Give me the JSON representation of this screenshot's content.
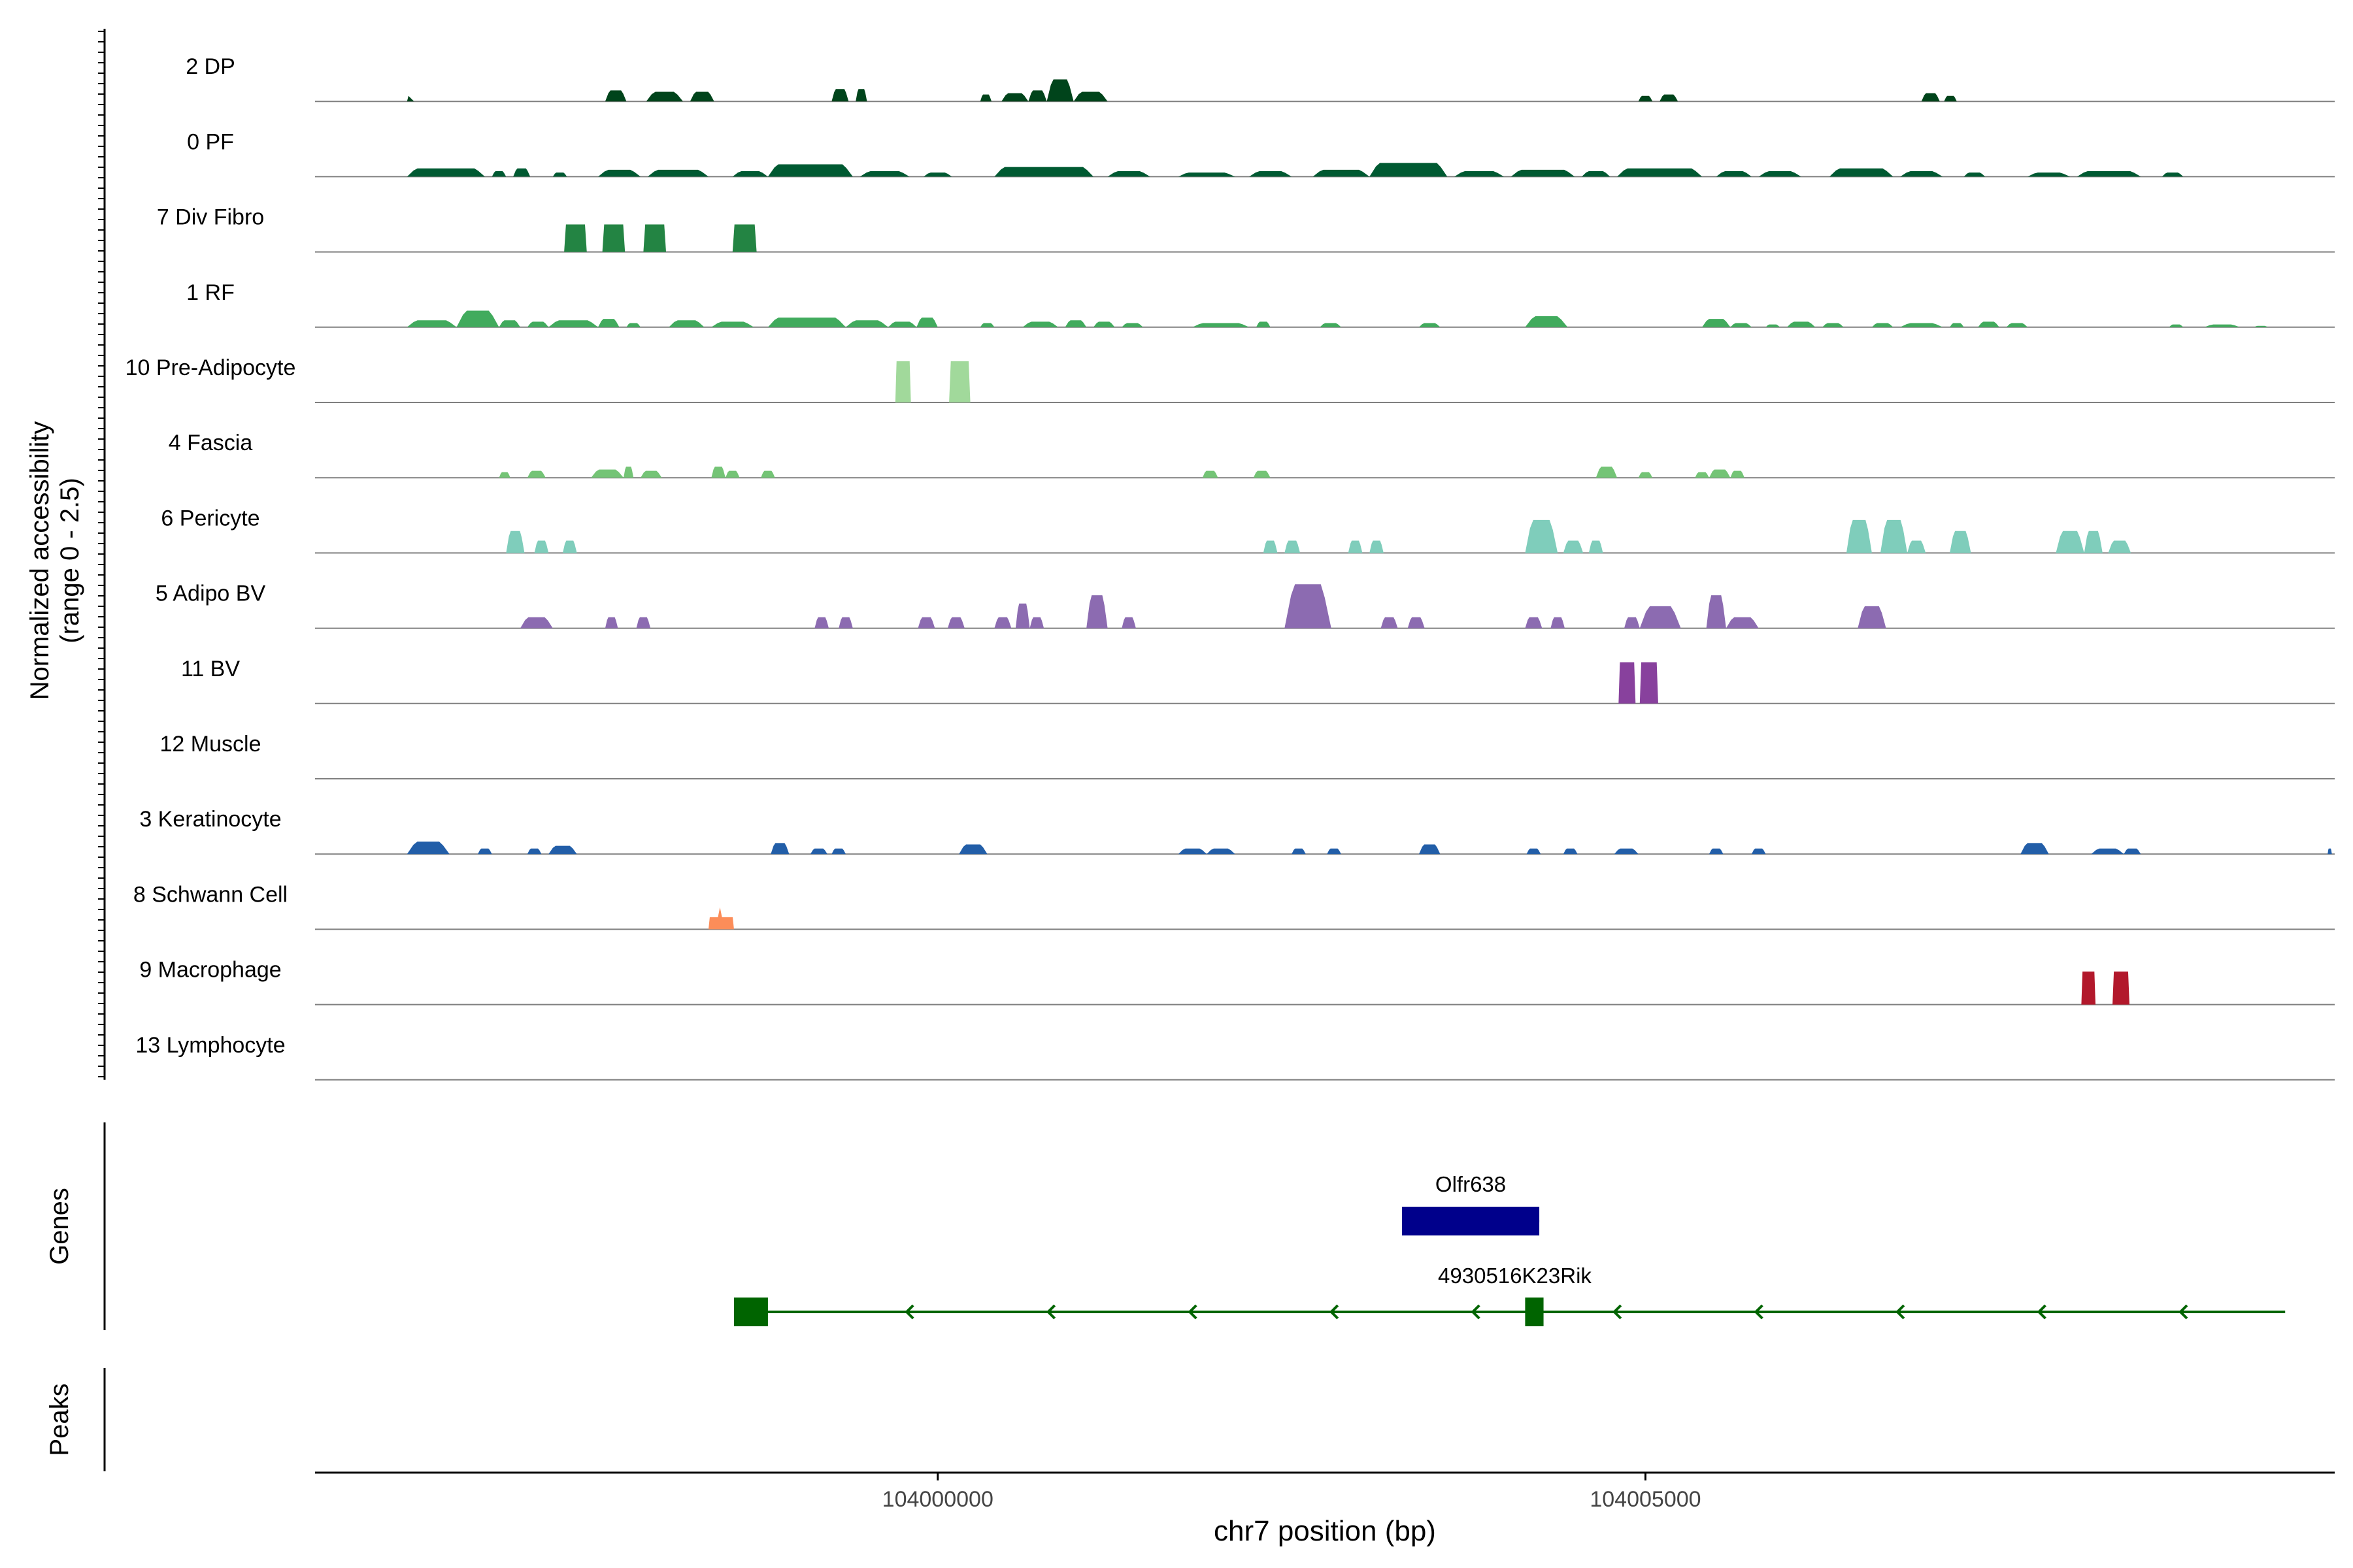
{
  "chart_data": {
    "type": "area",
    "title": "",
    "chromosome": "chr7",
    "xlabel": "chr7 position (bp)",
    "ylabel": [
      "Normalized accessibility",
      "(range 0 - 2.5)"
    ],
    "ylim": [
      0,
      2.5
    ],
    "xlim": [
      103995600,
      104009870
    ],
    "x_ticks": [
      {
        "value": 104000000,
        "label": "104000000"
      },
      {
        "value": 104005000,
        "label": "104005000"
      }
    ],
    "genes_label": "Genes",
    "peaks_label": "Peaks",
    "tracks": [
      {
        "name": "2 DP",
        "color": "#00441b",
        "peaks": [
          [
            103996250,
            103996300,
            0.2,
            "tri"
          ],
          [
            103997650,
            103997800,
            0.4
          ],
          [
            103997940,
            103998200,
            0.35
          ],
          [
            103998250,
            103998420,
            0.35
          ],
          [
            103999250,
            103999370,
            0.45
          ],
          [
            103999420,
            103999500,
            0.45
          ],
          [
            104000300,
            104000380,
            0.25
          ],
          [
            104000450,
            104000640,
            0.3
          ],
          [
            104000640,
            104000770,
            0.4
          ],
          [
            104000770,
            104000960,
            0.8
          ],
          [
            104000960,
            104001200,
            0.35
          ],
          [
            104004950,
            104005050,
            0.2
          ],
          [
            104005100,
            104005230,
            0.25
          ],
          [
            104006950,
            104007080,
            0.3
          ],
          [
            104007110,
            104007200,
            0.2
          ]
        ]
      },
      {
        "name": "0 PF",
        "color": "#005a32",
        "peaks": [
          [
            103996250,
            103996800,
            0.3
          ],
          [
            103996850,
            103996950,
            0.2
          ],
          [
            103997000,
            103997120,
            0.3
          ],
          [
            103997280,
            103997380,
            0.15
          ],
          [
            103997600,
            103997900,
            0.25
          ],
          [
            103997950,
            103998380,
            0.25
          ],
          [
            103998550,
            103998800,
            0.2
          ],
          [
            103998800,
            103999400,
            0.45
          ],
          [
            103999450,
            103999800,
            0.2
          ],
          [
            103999900,
            104000100,
            0.15
          ],
          [
            104000400,
            104001100,
            0.35
          ],
          [
            104001200,
            104001500,
            0.2
          ],
          [
            104001700,
            104002100,
            0.15
          ],
          [
            104002200,
            104002500,
            0.2
          ],
          [
            104002650,
            104003050,
            0.25
          ],
          [
            104003050,
            104003600,
            0.5
          ],
          [
            104003650,
            104004000,
            0.2
          ],
          [
            104004050,
            104004500,
            0.25
          ],
          [
            104004550,
            104004750,
            0.2
          ],
          [
            104004800,
            104005400,
            0.3
          ],
          [
            104005500,
            104005750,
            0.2
          ],
          [
            104005800,
            104006100,
            0.2
          ],
          [
            104006300,
            104006750,
            0.3
          ],
          [
            104006800,
            104007100,
            0.2
          ],
          [
            104007250,
            104007400,
            0.15
          ],
          [
            104007700,
            104008000,
            0.15
          ],
          [
            104008050,
            104008500,
            0.2
          ],
          [
            104008650,
            104008800,
            0.15
          ]
        ]
      },
      {
        "name": "7 Div Fibro",
        "color": "#238443",
        "peaks": [
          [
            103997360,
            103997520,
            1.0,
            "block"
          ],
          [
            103997630,
            103997790,
            1.0,
            "block"
          ],
          [
            103997920,
            103998080,
            1.0,
            "block"
          ],
          [
            103998550,
            103998720,
            1.0,
            "block"
          ]
        ]
      },
      {
        "name": "1 RF",
        "color": "#41ab5d",
        "peaks": [
          [
            103996250,
            103996600,
            0.25
          ],
          [
            103996600,
            103996900,
            0.6
          ],
          [
            103996900,
            103997050,
            0.25
          ],
          [
            103997100,
            103997250,
            0.2
          ],
          [
            103997250,
            103997600,
            0.25
          ],
          [
            103997600,
            103997750,
            0.3
          ],
          [
            103997800,
            103997900,
            0.15
          ],
          [
            103998100,
            103998350,
            0.25
          ],
          [
            103998400,
            103998700,
            0.2
          ],
          [
            103998800,
            103999350,
            0.35
          ],
          [
            103999350,
            103999650,
            0.25
          ],
          [
            103999650,
            103999850,
            0.2
          ],
          [
            103999850,
            104000000,
            0.35
          ],
          [
            104000300,
            104000400,
            0.15
          ],
          [
            104000600,
            104000850,
            0.2
          ],
          [
            104000900,
            104001050,
            0.25
          ],
          [
            104001100,
            104001250,
            0.2
          ],
          [
            104001300,
            104001450,
            0.15
          ],
          [
            104001800,
            104002200,
            0.15
          ],
          [
            104002250,
            104002350,
            0.2
          ],
          [
            104002700,
            104002850,
            0.15
          ],
          [
            104003400,
            104003550,
            0.15
          ],
          [
            104004150,
            104004450,
            0.4
          ],
          [
            104005400,
            104005600,
            0.3
          ],
          [
            104005600,
            104005750,
            0.15
          ],
          [
            104005850,
            104005950,
            0.1
          ],
          [
            104006000,
            104006200,
            0.2
          ],
          [
            104006250,
            104006400,
            0.15
          ],
          [
            104006600,
            104006750,
            0.15
          ],
          [
            104006800,
            104007100,
            0.15
          ],
          [
            104007150,
            104007250,
            0.15
          ],
          [
            104007350,
            104007500,
            0.2
          ],
          [
            104007550,
            104007700,
            0.15
          ],
          [
            104008700,
            104008800,
            0.1
          ],
          [
            104008950,
            104009200,
            0.1
          ],
          [
            104009300,
            104009400,
            0.05
          ]
        ]
      },
      {
        "name": "10 Pre-Adipocyte",
        "color": "#a1d99b",
        "peaks": [
          [
            103999700,
            103999810,
            1.5,
            "block"
          ],
          [
            104000080,
            104000230,
            1.5,
            "block"
          ]
        ]
      },
      {
        "name": "4 Fascia",
        "color": "#74c476",
        "peaks": [
          [
            103996900,
            103996980,
            0.2
          ],
          [
            103997100,
            103997230,
            0.25
          ],
          [
            103997550,
            103997780,
            0.3
          ],
          [
            103997780,
            103997850,
            0.4
          ],
          [
            103997900,
            103998050,
            0.25
          ],
          [
            103998400,
            103998500,
            0.4
          ],
          [
            103998500,
            103998600,
            0.25
          ],
          [
            103998750,
            103998850,
            0.25
          ],
          [
            104001870,
            104001980,
            0.25
          ],
          [
            104002230,
            104002350,
            0.25
          ],
          [
            104004650,
            104004800,
            0.4
          ],
          [
            104004950,
            104005050,
            0.2
          ],
          [
            104005350,
            104005450,
            0.2
          ],
          [
            104005450,
            104005600,
            0.3
          ],
          [
            104005600,
            104005700,
            0.25
          ]
        ]
      },
      {
        "name": "6 Pericyte",
        "color": "#7fcdbb",
        "peaks": [
          [
            103996950,
            103997080,
            0.8
          ],
          [
            103997150,
            103997250,
            0.45
          ],
          [
            103997350,
            103997450,
            0.45
          ],
          [
            104002300,
            104002400,
            0.45
          ],
          [
            104002450,
            104002560,
            0.45
          ],
          [
            104002900,
            104003000,
            0.45
          ],
          [
            104003050,
            104003150,
            0.45
          ],
          [
            104004150,
            104004380,
            1.2
          ],
          [
            104004420,
            104004560,
            0.45
          ],
          [
            104004600,
            104004700,
            0.45
          ],
          [
            104006420,
            104006600,
            1.2
          ],
          [
            104006660,
            104006850,
            1.2
          ],
          [
            104006850,
            104006980,
            0.45
          ],
          [
            104007150,
            104007300,
            0.8
          ],
          [
            104007900,
            104008100,
            0.8
          ],
          [
            104008100,
            104008230,
            0.8
          ],
          [
            104008270,
            104008430,
            0.45
          ]
        ]
      },
      {
        "name": "5 Adipo BV",
        "color": "#8c6bb1",
        "peaks": [
          [
            103997050,
            103997280,
            0.4
          ],
          [
            103997650,
            103997740,
            0.4
          ],
          [
            103997870,
            103997970,
            0.4
          ],
          [
            103999130,
            103999230,
            0.4
          ],
          [
            103999300,
            103999400,
            0.4
          ],
          [
            103999860,
            103999980,
            0.4
          ],
          [
            104000070,
            104000190,
            0.4
          ],
          [
            104000400,
            104000520,
            0.4
          ],
          [
            104000550,
            104000650,
            0.9
          ],
          [
            104000650,
            104000750,
            0.4
          ],
          [
            104001050,
            104001200,
            1.2
          ],
          [
            104001300,
            104001400,
            0.4
          ],
          [
            104002450,
            104002780,
            1.6
          ],
          [
            104003130,
            104003250,
            0.4
          ],
          [
            104003320,
            104003440,
            0.4
          ],
          [
            104004150,
            104004270,
            0.4
          ],
          [
            104004330,
            104004430,
            0.4
          ],
          [
            104004850,
            104004960,
            0.4
          ],
          [
            104004960,
            104005250,
            0.8
          ],
          [
            104005430,
            104005570,
            1.2
          ],
          [
            104005570,
            104005800,
            0.4
          ],
          [
            104006500,
            104006700,
            0.8
          ]
        ]
      },
      {
        "name": "11 BV",
        "color": "#88419d",
        "peaks": [
          [
            104004810,
            104004930,
            1.5,
            "block"
          ],
          [
            104004960,
            104005090,
            1.5,
            "block"
          ]
        ]
      },
      {
        "name": "12 Muscle",
        "color": "#808080",
        "peaks": []
      },
      {
        "name": "3 Keratinocyte",
        "color": "#225ea8",
        "peaks": [
          [
            103996250,
            103996550,
            0.45
          ],
          [
            103996750,
            103996850,
            0.2
          ],
          [
            103997100,
            103997200,
            0.2
          ],
          [
            103997250,
            103997450,
            0.3
          ],
          [
            103998820,
            103998950,
            0.4
          ],
          [
            103999100,
            103999220,
            0.2
          ],
          [
            103999250,
            103999350,
            0.2
          ],
          [
            104000150,
            104000350,
            0.35
          ],
          [
            104001700,
            104001900,
            0.2
          ],
          [
            104001900,
            104002100,
            0.2
          ],
          [
            104002500,
            104002600,
            0.2
          ],
          [
            104002750,
            104002850,
            0.2
          ],
          [
            104003400,
            104003550,
            0.35
          ],
          [
            104004160,
            104004260,
            0.2
          ],
          [
            104004420,
            104004520,
            0.2
          ],
          [
            104004780,
            104004950,
            0.2
          ],
          [
            104005450,
            104005550,
            0.2
          ],
          [
            104005750,
            104005850,
            0.2
          ],
          [
            104007650,
            104007850,
            0.4
          ],
          [
            104008150,
            104008380,
            0.2
          ],
          [
            104008380,
            104008500,
            0.2
          ],
          [
            104009820,
            104009850,
            0.2
          ]
        ]
      },
      {
        "name": "8 Schwann Cell",
        "color": "#fc8d59",
        "peaks": [
          [
            103998380,
            103998560,
            0.8,
            "spike"
          ]
        ]
      },
      {
        "name": "9 Macrophage",
        "color": "#b2182b",
        "peaks": [
          [
            104008080,
            104008180,
            1.2,
            "block"
          ],
          [
            104008300,
            104008420,
            1.2,
            "block"
          ]
        ]
      },
      {
        "name": "13 Lymphocyte",
        "color": "#808080",
        "peaks": []
      }
    ],
    "genes": [
      {
        "name": "Olfr638",
        "color": "#00008b",
        "strand": "+",
        "exons": [
          [
            104003280,
            104004250
          ]
        ]
      },
      {
        "name": "4930516K23Rik",
        "color": "#006400",
        "strand": "-",
        "start": 103998560,
        "end": 104009520,
        "exons": [
          [
            103998560,
            103998800
          ],
          [
            104004150,
            104004280
          ]
        ],
        "arrows": [
          103999780,
          104000780,
          104001780,
          104002780,
          104003780,
          104004780,
          104005780,
          104006780,
          104007780,
          104008780
        ]
      }
    ]
  }
}
